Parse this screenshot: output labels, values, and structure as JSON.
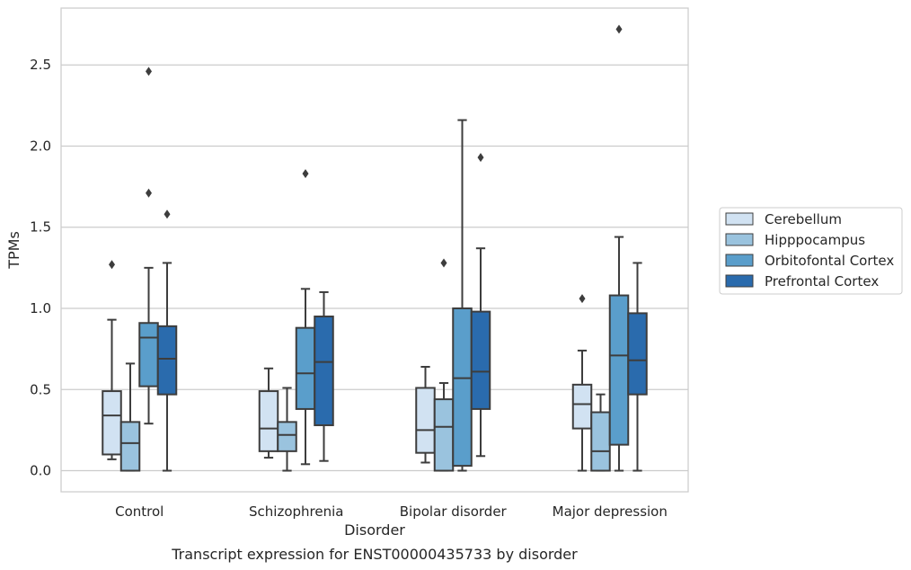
{
  "chart_data": {
    "type": "box",
    "caption": "Transcript expression for ENST00000435733 by disorder",
    "xlabel": "Disorder",
    "ylabel": "TPMs",
    "categories": [
      "Control",
      "Schizophrenia",
      "Bipolar disorder",
      "Major depression"
    ],
    "ylim": [
      -0.13,
      2.85
    ],
    "yticks": [
      0.0,
      0.5,
      1.0,
      1.5,
      2.0,
      2.5
    ],
    "ytick_labels": [
      "0.0",
      "0.5",
      "1.0",
      "1.5",
      "2.0",
      "2.5"
    ],
    "grid": "horizontal",
    "legend_position": "right",
    "series": [
      {
        "name": "Cerebellum",
        "color": "#d1e2f2",
        "boxes": [
          {
            "whislo": 0.07,
            "q1": 0.1,
            "med": 0.34,
            "q3": 0.49,
            "whishi": 0.93,
            "fliers": [
              1.27
            ]
          },
          {
            "whislo": 0.08,
            "q1": 0.12,
            "med": 0.26,
            "q3": 0.49,
            "whishi": 0.63,
            "fliers": []
          },
          {
            "whislo": 0.05,
            "q1": 0.11,
            "med": 0.25,
            "q3": 0.51,
            "whishi": 0.64,
            "fliers": []
          },
          {
            "whislo": 0.0,
            "q1": 0.26,
            "med": 0.41,
            "q3": 0.53,
            "whishi": 0.74,
            "fliers": [
              1.06
            ]
          }
        ]
      },
      {
        "name": "Hipppocampus",
        "color": "#9ac3de",
        "boxes": [
          {
            "whislo": 0.0,
            "q1": 0.0,
            "med": 0.17,
            "q3": 0.3,
            "whishi": 0.66,
            "fliers": []
          },
          {
            "whislo": 0.0,
            "q1": 0.12,
            "med": 0.22,
            "q3": 0.3,
            "whishi": 0.51,
            "fliers": []
          },
          {
            "whislo": 0.0,
            "q1": 0.0,
            "med": 0.27,
            "q3": 0.44,
            "whishi": 0.54,
            "fliers": [
              1.28
            ]
          },
          {
            "whislo": 0.0,
            "q1": 0.0,
            "med": 0.12,
            "q3": 0.36,
            "whishi": 0.47,
            "fliers": []
          }
        ]
      },
      {
        "name": "Orbitofontal Cortex",
        "color": "#5a9ecb",
        "boxes": [
          {
            "whislo": 0.29,
            "q1": 0.52,
            "med": 0.82,
            "q3": 0.91,
            "whishi": 1.25,
            "fliers": [
              1.71,
              2.46
            ]
          },
          {
            "whislo": 0.04,
            "q1": 0.38,
            "med": 0.6,
            "q3": 0.88,
            "whishi": 1.12,
            "fliers": [
              1.83
            ]
          },
          {
            "whislo": 0.0,
            "q1": 0.03,
            "med": 0.57,
            "q3": 1.0,
            "whishi": 2.16,
            "fliers": []
          },
          {
            "whislo": 0.0,
            "q1": 0.16,
            "med": 0.71,
            "q3": 1.08,
            "whishi": 1.44,
            "fliers": [
              2.72
            ]
          }
        ]
      },
      {
        "name": "Prefrontal Cortex",
        "color": "#2a6bad",
        "boxes": [
          {
            "whislo": 0.0,
            "q1": 0.47,
            "med": 0.69,
            "q3": 0.89,
            "whishi": 1.28,
            "fliers": [
              1.58
            ]
          },
          {
            "whislo": 0.06,
            "q1": 0.28,
            "med": 0.67,
            "q3": 0.95,
            "whishi": 1.1,
            "fliers": []
          },
          {
            "whislo": 0.09,
            "q1": 0.38,
            "med": 0.61,
            "q3": 0.98,
            "whishi": 1.37,
            "fliers": [
              1.93
            ]
          },
          {
            "whislo": 0.0,
            "q1": 0.47,
            "med": 0.68,
            "q3": 0.97,
            "whishi": 1.28,
            "fliers": []
          }
        ]
      }
    ]
  }
}
